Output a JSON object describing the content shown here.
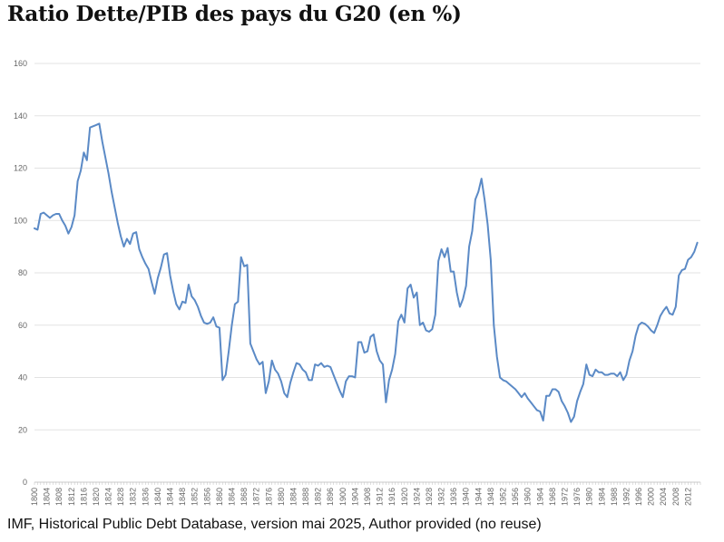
{
  "title": "Ratio Dette/PIB des pays du G20 (en %)",
  "caption": "IMF, Historical Public Debt Database, version mai 2025, Author provided (no reuse)",
  "chart_data": {
    "type": "line",
    "title": "",
    "xlabel": "",
    "ylabel": "",
    "xlim": [
      1800,
      2016
    ],
    "ylim": [
      0,
      160
    ],
    "y_ticks": [
      0,
      20,
      40,
      60,
      80,
      100,
      120,
      140,
      160
    ],
    "x_ticks": [
      1800,
      1804,
      1808,
      1812,
      1816,
      1820,
      1824,
      1828,
      1832,
      1836,
      1840,
      1844,
      1848,
      1852,
      1856,
      1860,
      1864,
      1868,
      1872,
      1876,
      1880,
      1884,
      1888,
      1892,
      1896,
      1900,
      1904,
      1908,
      1912,
      1916,
      1920,
      1924,
      1928,
      1932,
      1936,
      1940,
      1944,
      1948,
      1952,
      1956,
      1960,
      1964,
      1968,
      1972,
      1976,
      1980,
      1984,
      1988,
      1992,
      1996,
      2000,
      2004,
      2008,
      2012
    ],
    "grid": true,
    "legend": "none",
    "line_color": "#5b8ac6",
    "series": [
      {
        "x": [
          1800,
          1801,
          1802,
          1803,
          1804,
          1805,
          1806,
          1807,
          1808,
          1809,
          1810,
          1811,
          1812,
          1813,
          1814,
          1815,
          1816,
          1817,
          1818,
          1819,
          1820,
          1821,
          1822,
          1823,
          1824,
          1825,
          1826,
          1827,
          1828,
          1829,
          1830,
          1831,
          1832,
          1833,
          1834,
          1835,
          1836,
          1837,
          1838,
          1839,
          1840,
          1841,
          1842,
          1843,
          1844,
          1845,
          1846,
          1847,
          1848,
          1849,
          1850,
          1851,
          1852,
          1853,
          1854,
          1855,
          1856,
          1857,
          1858,
          1859,
          1860,
          1861,
          1862,
          1863,
          1864,
          1865,
          1866,
          1867,
          1868,
          1869,
          1870,
          1871,
          1872,
          1873,
          1874,
          1875,
          1876,
          1877,
          1878,
          1879,
          1880,
          1881,
          1882,
          1883,
          1884,
          1885,
          1886,
          1887,
          1888,
          1889,
          1890,
          1891,
          1892,
          1893,
          1894,
          1895,
          1896,
          1897,
          1898,
          1899,
          1900,
          1901,
          1902,
          1903,
          1904,
          1905,
          1906,
          1907,
          1908,
          1909,
          1910,
          1911,
          1912,
          1913,
          1914,
          1915,
          1916,
          1917,
          1918,
          1919,
          1920,
          1921,
          1922,
          1923,
          1924,
          1925,
          1926,
          1927,
          1928,
          1929,
          1930,
          1931,
          1932,
          1933,
          1934,
          1935,
          1936,
          1937,
          1938,
          1939,
          1940,
          1941,
          1942,
          1943,
          1944,
          1945,
          1946,
          1947,
          1948,
          1949,
          1950,
          1951,
          1952,
          1953,
          1954,
          1955,
          1956,
          1957,
          1958,
          1959,
          1960,
          1961,
          1962,
          1963,
          1964,
          1965,
          1966,
          1967,
          1968,
          1969,
          1970,
          1971,
          1972,
          1973,
          1974,
          1975,
          1976,
          1977,
          1978,
          1979,
          1980,
          1981,
          1982,
          1983,
          1984,
          1985,
          1986,
          1987,
          1988,
          1989,
          1990,
          1991,
          1992,
          1993,
          1994,
          1995,
          1996,
          1997,
          1998,
          1999,
          2000,
          2001,
          2002,
          2003,
          2004,
          2005,
          2006,
          2007,
          2008,
          2009,
          2010,
          2011,
          2012,
          2013,
          2014,
          2015
        ],
        "values": [
          97,
          96.5,
          102.5,
          103,
          102,
          101,
          102,
          102.5,
          102.5,
          100,
          98,
          95,
          97.5,
          102,
          115,
          119,
          126,
          123,
          135.5,
          136,
          136.5,
          137,
          130,
          124,
          118,
          111,
          105,
          99,
          94,
          90,
          93,
          91,
          95,
          95.5,
          89,
          86,
          83.5,
          81.5,
          76.5,
          72,
          78,
          82,
          87,
          87.5,
          79,
          73,
          68,
          66,
          69,
          68.5,
          75.5,
          71,
          69.5,
          67,
          63.5,
          61,
          60.5,
          61,
          63,
          59.5,
          59,
          39,
          41,
          50,
          60,
          68,
          69,
          86,
          82.5,
          83,
          53,
          50,
          47,
          45,
          46,
          34,
          38.5,
          46.5,
          43,
          41.5,
          38.5,
          34,
          32.5,
          38,
          42,
          45.5,
          45,
          43,
          42,
          39,
          39,
          45,
          44.5,
          45.5,
          44,
          44.5,
          44,
          41,
          38,
          35,
          32.5,
          38.5,
          40.5,
          40.5,
          40,
          53.5,
          53.5,
          49.5,
          50,
          55.5,
          56.5,
          50,
          46.5,
          45,
          30.5,
          39,
          43,
          49,
          61.5,
          64,
          61,
          74,
          75.5,
          70.5,
          72.5,
          60,
          61,
          58,
          57.5,
          58.5,
          64,
          84.5,
          89,
          86,
          89.5,
          80.5,
          80.5,
          72.5,
          67,
          70,
          75,
          90,
          96,
          108,
          111,
          116,
          108,
          98.5,
          85,
          60,
          48,
          40,
          39,
          38.5,
          37.5,
          36.5,
          35.5,
          34,
          32.5,
          34,
          32,
          30.5,
          29,
          27.5,
          27,
          23.5,
          33,
          33,
          35.5,
          35.5,
          34.5,
          31,
          29,
          26.5,
          23,
          25,
          31,
          34.5,
          37.5,
          45,
          41,
          40.5,
          43,
          42,
          42,
          41,
          41,
          41.5,
          41.5,
          40.5,
          42,
          39,
          41,
          46.5,
          50,
          56,
          60,
          61,
          60.5,
          59.5,
          58,
          57,
          60,
          63.5,
          65.5,
          67,
          64.5,
          64,
          67,
          79,
          81,
          81.5,
          85,
          86,
          88,
          91.5
        ]
      }
    ]
  }
}
